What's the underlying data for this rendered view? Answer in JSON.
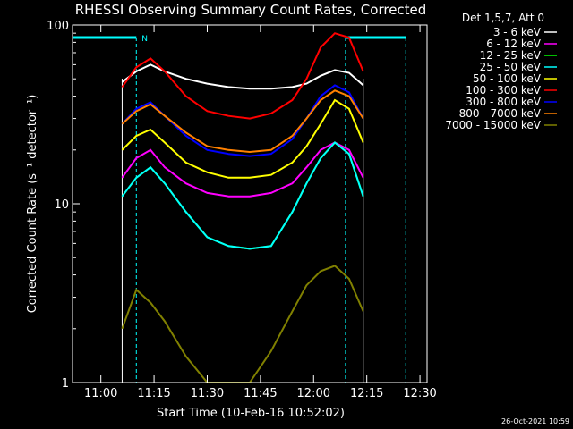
{
  "chart_data": {
    "type": "line",
    "title": "RHESSI Observing Summary Count Rates, Corrected",
    "xlabel": "Start Time (10-Feb-16 10:52:02)",
    "ylabel": "Corrected Count Rate (s⁻¹ detector⁻¹)",
    "yscale": "log",
    "ylim": [
      1,
      100
    ],
    "xlim": [
      "10:52",
      "12:32"
    ],
    "x_ticks": [
      "11:00",
      "11:15",
      "11:30",
      "11:45",
      "12:00",
      "12:15",
      "12:30"
    ],
    "y_ticks": [
      "1",
      "10",
      "100"
    ],
    "legend_title": "Det 1,5,7, Att 0",
    "legend_placement": "right",
    "timestamp": "26-Oct-2021 10:59",
    "annotations": [
      {
        "text": "N",
        "time": "11:10"
      }
    ],
    "night_markers": [
      {
        "start": "10:52",
        "end": "11:10",
        "color": "#00ffff"
      },
      {
        "start": "12:09",
        "end": "12:26",
        "color": "#00ffff"
      }
    ],
    "observing_window": [
      "11:06",
      "12:14"
    ],
    "series": [
      {
        "name": "3 - 6 keV",
        "color": "#ffffff",
        "x": [
          "11:06",
          "11:10",
          "11:14",
          "11:18",
          "11:24",
          "11:30",
          "11:36",
          "11:42",
          "11:48",
          "11:54",
          "11:58",
          "12:02",
          "12:06",
          "12:10",
          "12:14"
        ],
        "y": [
          48,
          55,
          60,
          55,
          50,
          47,
          45,
          44,
          44,
          45,
          47,
          52,
          56,
          54,
          46
        ]
      },
      {
        "name": "6 - 12 keV",
        "color": "#ff00ff",
        "x": [
          "11:06",
          "11:10",
          "11:14",
          "11:18",
          "11:24",
          "11:30",
          "11:36",
          "11:42",
          "11:48",
          "11:54",
          "11:58",
          "12:02",
          "12:06",
          "12:10",
          "12:14"
        ],
        "y": [
          14,
          18,
          20,
          16,
          13,
          11.5,
          11,
          11,
          11.5,
          13,
          16,
          20,
          22,
          20,
          14
        ]
      },
      {
        "name": "12 - 25 keV",
        "color": "#00ff00",
        "x": [
          "11:06",
          "11:10",
          "11:14",
          "11:18",
          "11:24",
          "11:30",
          "11:36",
          "11:42",
          "11:48",
          "11:54",
          "11:58",
          "12:02",
          "12:06",
          "12:10",
          "12:14"
        ],
        "y": [
          11,
          14,
          16,
          13,
          9,
          6.5,
          5.8,
          5.6,
          5.8,
          9,
          13,
          18,
          22,
          19,
          11
        ]
      },
      {
        "name": "25 - 50 keV",
        "color": "#00ffff",
        "x": [
          "11:06",
          "11:10",
          "11:14",
          "11:18",
          "11:24",
          "11:30",
          "11:36",
          "11:42",
          "11:48",
          "11:54",
          "11:58",
          "12:02",
          "12:06",
          "12:10",
          "12:14"
        ],
        "y": [
          11,
          14,
          16,
          13,
          9,
          6.5,
          5.8,
          5.6,
          5.8,
          9,
          13,
          18,
          22,
          19,
          11
        ]
      },
      {
        "name": "50 - 100 keV",
        "color": "#ffff00",
        "x": [
          "11:06",
          "11:10",
          "11:14",
          "11:18",
          "11:24",
          "11:30",
          "11:36",
          "11:42",
          "11:48",
          "11:54",
          "11:58",
          "12:02",
          "12:06",
          "12:10",
          "12:14"
        ],
        "y": [
          20,
          24,
          26,
          22,
          17,
          15,
          14,
          14,
          14.5,
          17,
          21,
          28,
          38,
          34,
          22
        ]
      },
      {
        "name": "100 - 300 keV",
        "color": "#ff0000",
        "x": [
          "11:06",
          "11:10",
          "11:14",
          "11:18",
          "11:24",
          "11:30",
          "11:36",
          "11:42",
          "11:48",
          "11:54",
          "11:58",
          "12:02",
          "12:06",
          "12:10",
          "12:14"
        ],
        "y": [
          45,
          58,
          65,
          55,
          40,
          33,
          31,
          30,
          32,
          38,
          50,
          75,
          90,
          85,
          55
        ]
      },
      {
        "name": "300 - 800 keV",
        "color": "#0000ff",
        "x": [
          "11:06",
          "11:10",
          "11:14",
          "11:18",
          "11:24",
          "11:30",
          "11:36",
          "11:42",
          "11:48",
          "11:54",
          "11:58",
          "12:02",
          "12:06",
          "12:10",
          "12:14"
        ],
        "y": [
          28,
          34,
          37,
          31,
          24,
          20,
          19,
          18.5,
          19,
          23,
          30,
          40,
          46,
          42,
          30
        ]
      },
      {
        "name": "800 - 7000 keV",
        "color": "#ff8000",
        "x": [
          "11:06",
          "11:10",
          "11:14",
          "11:18",
          "11:24",
          "11:30",
          "11:36",
          "11:42",
          "11:48",
          "11:54",
          "11:58",
          "12:02",
          "12:06",
          "12:10",
          "12:14"
        ],
        "y": [
          28,
          33,
          36,
          31,
          25,
          21,
          20,
          19.5,
          20,
          24,
          30,
          38,
          43,
          40,
          30
        ]
      },
      {
        "name": "7000 - 15000 keV",
        "color": "#808000",
        "x": [
          "11:06",
          "11:10",
          "11:14",
          "11:18",
          "11:24",
          "11:30",
          "11:36",
          "11:42",
          "11:48",
          "11:54",
          "11:58",
          "12:02",
          "12:06",
          "12:10",
          "12:14"
        ],
        "y": [
          2,
          3.3,
          2.8,
          2.2,
          1.4,
          1.0,
          1.0,
          1.0,
          1.5,
          2.5,
          3.5,
          4.2,
          4.5,
          3.8,
          2.5
        ]
      }
    ]
  }
}
